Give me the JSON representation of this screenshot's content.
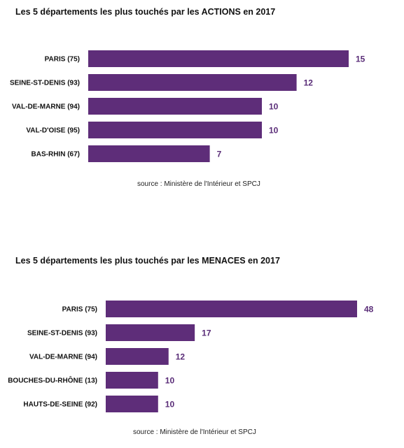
{
  "colors": {
    "bar": "#5e2d79",
    "value_label": "#5a2d78"
  },
  "chart_data": [
    {
      "type": "bar",
      "orientation": "horizontal",
      "title": "Les 5 départements les plus touchés par les ACTIONS en 2017",
      "categories": [
        "PARIS (75)",
        "SEINE-ST-DENIS (93)",
        "VAL-DE-MARNE (94)",
        "VAL-D'OISE (95)",
        "BAS-RHIN (67)"
      ],
      "values": [
        15,
        12,
        10,
        10,
        7
      ],
      "source": "source : Ministère de l'Intérieur et SPCJ",
      "grid": false,
      "legend": "none"
    },
    {
      "type": "bar",
      "orientation": "horizontal",
      "title": "Les 5 départements les plus touchés par les MENACES en 2017",
      "categories": [
        "PARIS (75)",
        "SEINE-ST-DENIS (93)",
        "VAL-DE-MARNE (94)",
        "BOUCHES-DU-RHÔNE (13)",
        "HAUTS-DE-SEINE (92)"
      ],
      "values": [
        48,
        17,
        12,
        10,
        10
      ],
      "source": "source : Ministère de l'Intérieur et SPCJ",
      "grid": false,
      "legend": "none"
    }
  ]
}
